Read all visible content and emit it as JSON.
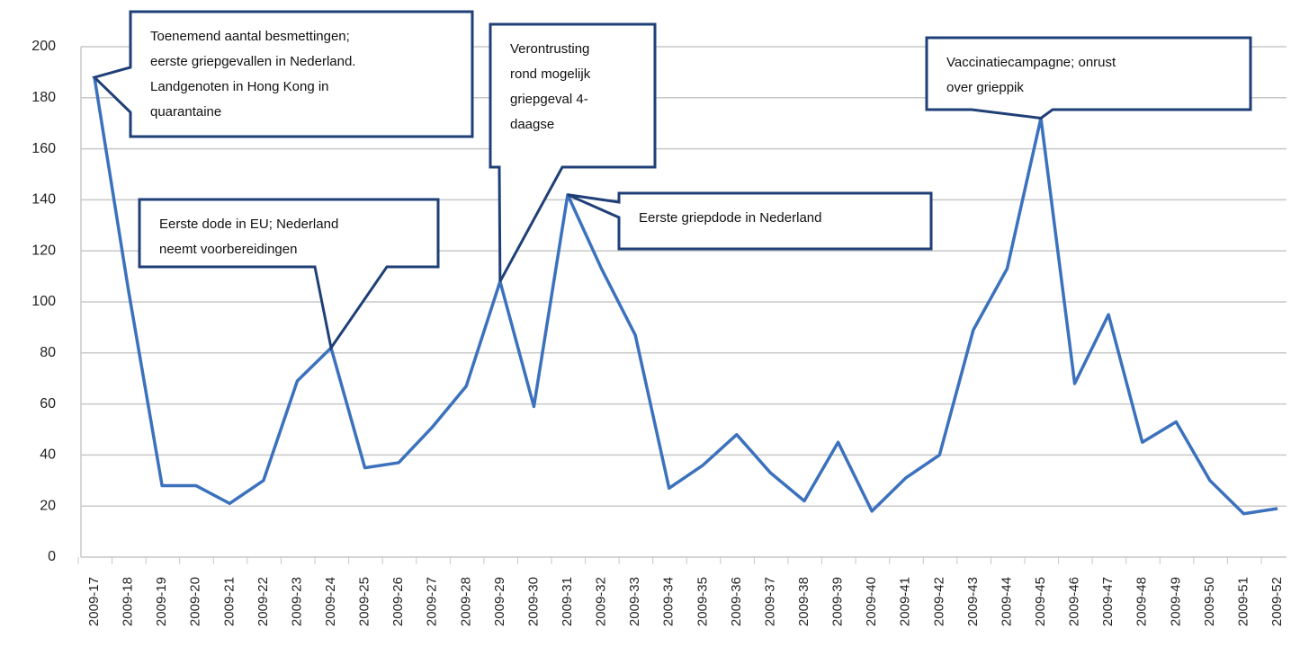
{
  "chart_data": {
    "type": "line",
    "categories": [
      "2009-17",
      "2009-18",
      "2009-19",
      "2009-20",
      "2009-21",
      "2009-22",
      "2009-23",
      "2009-24",
      "2009-25",
      "2009-26",
      "2009-27",
      "2009-28",
      "2009-29",
      "2009-30",
      "2009-31",
      "2009-32",
      "2009-33",
      "2009-34",
      "2009-35",
      "2009-36",
      "2009-37",
      "2009-38",
      "2009-39",
      "2009-40",
      "2009-41",
      "2009-42",
      "2009-43",
      "2009-44",
      "2009-45",
      "2009-46",
      "2009-47",
      "2009-48",
      "2009-49",
      "2009-50",
      "2009-51",
      "2009-52"
    ],
    "series": [
      {
        "color": "#3b71bd",
        "values": [
          188,
          105,
          28,
          28,
          21,
          30,
          69,
          82,
          35,
          37,
          51,
          67,
          108,
          59,
          142,
          113,
          87,
          27,
          36,
          48,
          33,
          22,
          45,
          18,
          31,
          40,
          89,
          113,
          172,
          68,
          95,
          45,
          53,
          30,
          17,
          19
        ]
      }
    ],
    "ylim": [
      0,
      200
    ],
    "yticks": [
      0,
      20,
      40,
      60,
      80,
      100,
      120,
      140,
      160,
      180,
      200
    ],
    "grid": true,
    "annotations": [
      {
        "lines": [
          "Toenemend aantal besmettingen;",
          "eerste griepgevallen in Nederland.",
          "Landgenoten in Hong Kong in",
          "quarantaine"
        ]
      },
      {
        "lines": [
          "Eerste dode in EU; Nederland",
          "neemt voorbereidingen"
        ]
      },
      {
        "lines": [
          "Verontrusting",
          "rond mogelijk",
          "griepgeval 4-",
          "daagse"
        ]
      },
      {
        "lines": [
          "Eerste griepdode in Nederland"
        ]
      },
      {
        "lines": [
          "Vaccinatiecampagne; onrust",
          "over grieppik"
        ]
      }
    ]
  }
}
